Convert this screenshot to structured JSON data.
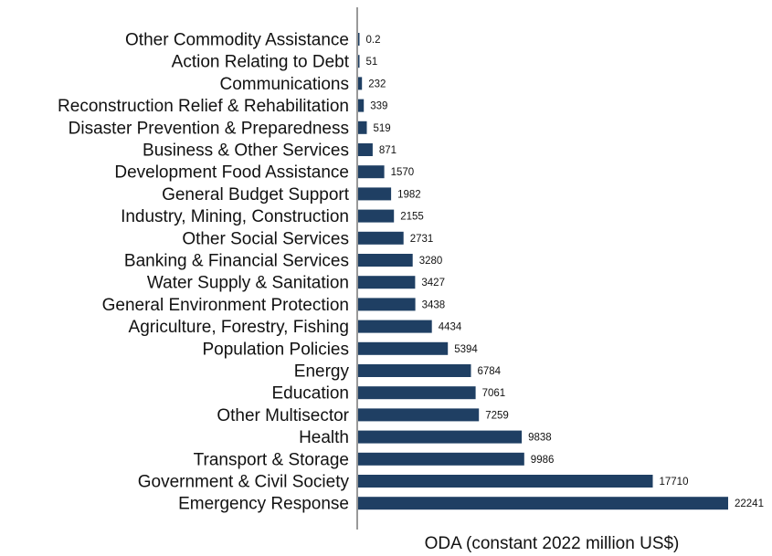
{
  "chart_data": {
    "type": "bar",
    "orientation": "horizontal",
    "title": "",
    "xlabel": "ODA (constant 2022 million US$)",
    "ylabel": "",
    "xlim": [
      0,
      22241
    ],
    "grid": false,
    "legend": "none",
    "bar_color": "#1f3f63",
    "categories": [
      "Other Commodity Assistance",
      "Action Relating to Debt",
      "Communications",
      "Reconstruction Relief & Rehabilitation",
      "Disaster Prevention & Preparedness",
      "Business & Other Services",
      "Development Food Assistance",
      "General Budget Support",
      "Industry, Mining, Construction",
      "Other Social Services",
      "Banking & Financial Services",
      "Water Supply & Sanitation",
      "General Environment Protection",
      "Agriculture, Forestry, Fishing",
      "Population Policies",
      "Energy",
      "Education",
      "Other Multisector",
      "Health",
      "Transport & Storage",
      "Government & Civil Society",
      "Emergency Response"
    ],
    "values": [
      0.2,
      51,
      232,
      339,
      519,
      871,
      1570,
      1982,
      2155,
      2731,
      3280,
      3427,
      3438,
      4434,
      5394,
      6784,
      7061,
      7259,
      9838,
      9986,
      17710,
      22241
    ],
    "value_labels": [
      "0.2",
      "51",
      "232",
      "339",
      "519",
      "871",
      "1570",
      "1982",
      "2155",
      "2731",
      "3280",
      "3427",
      "3438",
      "4434",
      "5394",
      "6784",
      "7061",
      "7259",
      "9838",
      "9986",
      "17710",
      "22241"
    ]
  }
}
